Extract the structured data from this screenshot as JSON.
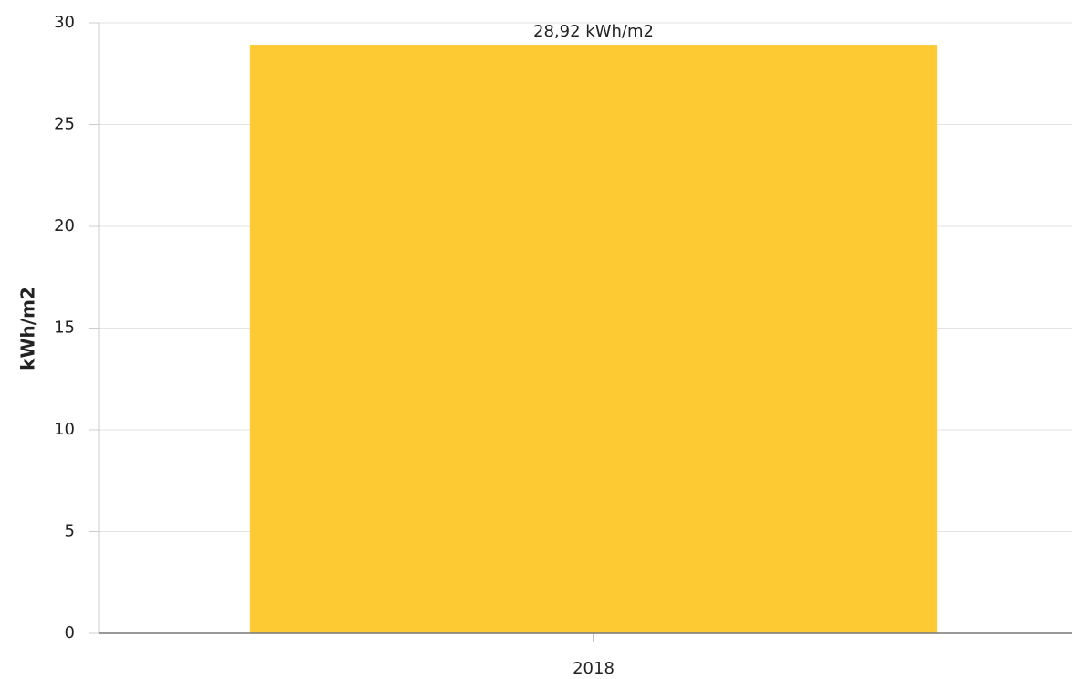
{
  "chart_data": {
    "type": "bar",
    "y_label": "kWh/m2",
    "categories": [
      "2018"
    ],
    "values": [
      28.92
    ],
    "value_labels": [
      "28,92 kWh/m2"
    ],
    "color": "#fdca33",
    "ylim": [
      0,
      30
    ],
    "yticks": [
      0,
      5,
      10,
      15,
      20,
      25,
      30
    ],
    "grid": true
  }
}
